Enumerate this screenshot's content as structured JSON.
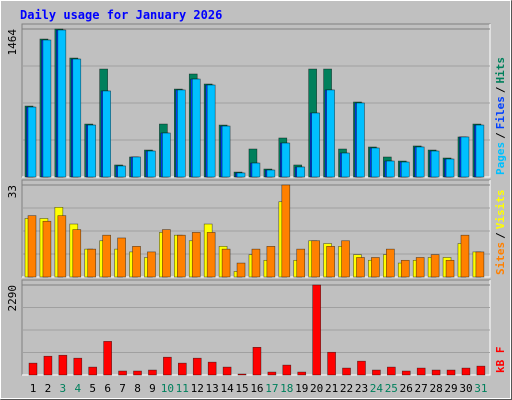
{
  "chart_data": [
    {
      "type": "bar",
      "title": "Daily usage for January 2026",
      "ylim": [
        0,
        1464
      ],
      "yticks": [
        1464
      ],
      "legend_separator": "/",
      "series": [
        {
          "name": "Hits",
          "color": "#00805c",
          "values": [
            702,
            1365,
            1464,
            1177,
            524,
            1068,
            119,
            198,
            267,
            524,
            870,
            1019,
            920,
            514,
            49,
            277,
            79,
            386,
            119,
            1068,
            1068,
            277,
            742,
            297,
            198,
            158,
            307,
            267,
            188,
            396,
            524
          ]
        },
        {
          "name": "Files",
          "color": "#0040ff",
          "values": [
            692,
            1355,
            1454,
            1167,
            514,
            851,
            109,
            198,
            257,
            435,
            861,
            969,
            910,
            504,
            40,
            138,
            69,
            336,
            99,
            633,
            861,
            237,
            732,
            287,
            158,
            148,
            297,
            257,
            178,
            396,
            514
          ]
        },
        {
          "name": "Pages",
          "color": "#00c0ff",
          "values": [
            692,
            1355,
            1454,
            1167,
            514,
            851,
            109,
            198,
            257,
            435,
            861,
            969,
            910,
            504,
            40,
            138,
            69,
            336,
            99,
            633,
            861,
            237,
            732,
            287,
            158,
            148,
            297,
            257,
            178,
            396,
            514
          ]
        }
      ]
    },
    {
      "type": "bar",
      "ylim": [
        0,
        33
      ],
      "yticks": [
        33
      ],
      "legend_separator": "/",
      "series": [
        {
          "name": "Visits",
          "color": "#ffff00",
          "values": [
            21,
            21,
            25,
            19,
            10,
            13,
            10,
            9,
            7,
            16,
            15,
            13,
            19,
            11,
            2,
            8,
            6,
            27,
            6,
            13,
            12,
            11,
            8,
            6,
            8,
            5,
            6,
            7,
            7,
            12,
            9
          ]
        },
        {
          "name": "Sites",
          "color": "#ff8000",
          "values": [
            22,
            20,
            22,
            17,
            10,
            15,
            14,
            11,
            9,
            17,
            15,
            16,
            16,
            10,
            5,
            10,
            11,
            33,
            10,
            13,
            11,
            13,
            7,
            7,
            10,
            6,
            7,
            8,
            6,
            15,
            9
          ]
        }
      ]
    },
    {
      "type": "bar",
      "ylim": [
        0,
        2290
      ],
      "yticks": [
        2290
      ],
      "categories": [
        "1",
        "2",
        "3",
        "4",
        "5",
        "6",
        "7",
        "8",
        "9",
        "10",
        "11",
        "12",
        "13",
        "14",
        "15",
        "16",
        "17",
        "18",
        "19",
        "20",
        "21",
        "22",
        "23",
        "24",
        "25",
        "26",
        "27",
        "28",
        "29",
        "30",
        "31"
      ],
      "category_colors": [
        "#000000",
        "#000000",
        "#00805c",
        "#00805c",
        "#000000",
        "#000000",
        "#000000",
        "#000000",
        "#000000",
        "#00805c",
        "#00805c",
        "#000000",
        "#000000",
        "#000000",
        "#000000",
        "#000000",
        "#00805c",
        "#00805c",
        "#000000",
        "#000000",
        "#000000",
        "#000000",
        "#000000",
        "#00805c",
        "#00805c",
        "#000000",
        "#000000",
        "#000000",
        "#000000",
        "#000000",
        "#00805c"
      ],
      "series": [
        {
          "name": "kB F",
          "color": "#ff0000",
          "values": [
            302,
            478,
            503,
            428,
            201,
            856,
            101,
            101,
            126,
            453,
            302,
            428,
            327,
            201,
            25,
            705,
            75,
            252,
            75,
            2290,
            579,
            176,
            352,
            126,
            201,
            101,
            176,
            126,
            126,
            176,
            226
          ]
        }
      ]
    }
  ]
}
